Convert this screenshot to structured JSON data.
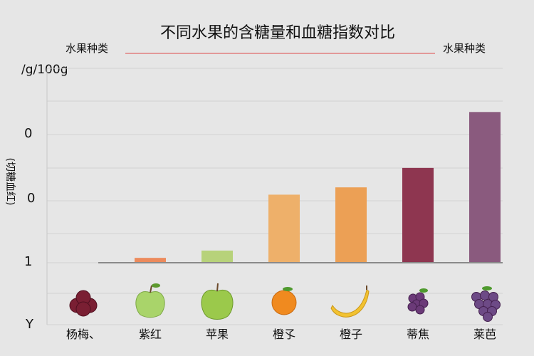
{
  "chart_data": {
    "type": "bar",
    "title": "不同水果的含糖量和血糖指数对比",
    "legend_left": "水果种类",
    "legend_right": "水果种类",
    "unit_label": "/g/100g",
    "ylabel": "(切糖血红)",
    "y_tick_labels": [
      "0",
      "0",
      "1",
      "Y"
    ],
    "categories": [
      "杨梅、",
      "紫红",
      "苹果",
      "橙孓",
      "橙子",
      "蒂焦",
      "莱芭"
    ],
    "values": [
      0,
      1,
      2.5,
      14,
      15.5,
      19.5,
      31
    ],
    "ylim": [
      0,
      35
    ],
    "colors": [
      "#c0504d",
      "#ec8a5c",
      "#b7d27a",
      "#eeb06a",
      "#eca055",
      "#8e3650",
      "#8a5a7e"
    ],
    "icons": [
      "bayberry-icon",
      "green-apple-icon",
      "apple-icon",
      "orange-icon",
      "banana-icon",
      "grape-icon",
      "grape-bunch-icon"
    ],
    "grid": true
  }
}
